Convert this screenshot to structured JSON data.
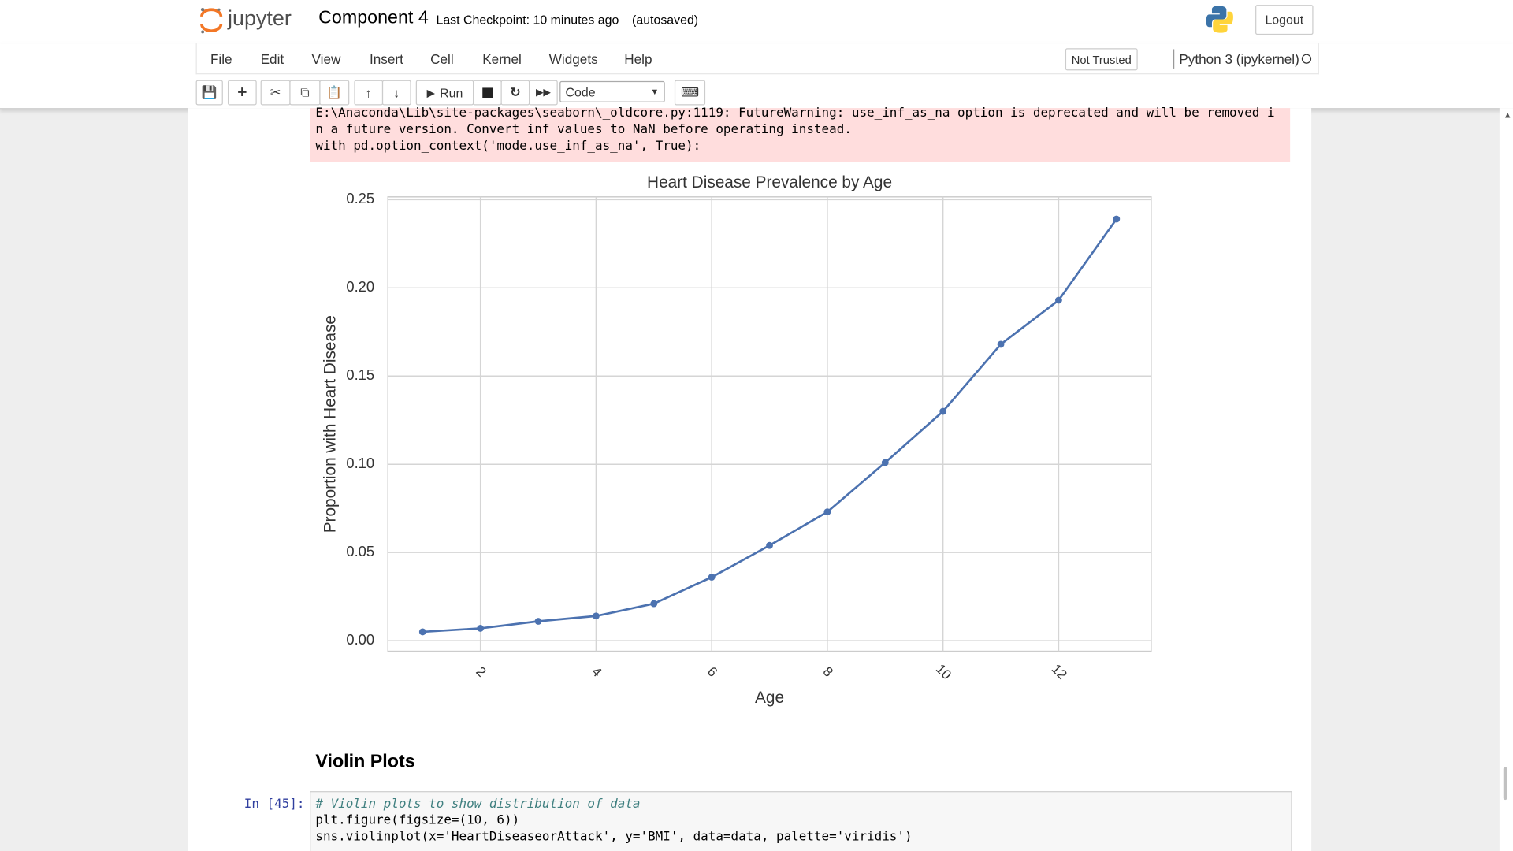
{
  "header": {
    "logo_text": "jupyter",
    "notebook_name": "Component 4",
    "checkpoint": "Last Checkpoint: 10 minutes ago",
    "autosave": "(autosaved)",
    "logout": "Logout"
  },
  "menu": {
    "items": [
      "File",
      "Edit",
      "View",
      "Insert",
      "Cell",
      "Kernel",
      "Widgets",
      "Help"
    ],
    "trust": "Not Trusted",
    "kernel": "Python 3 (ipykernel)"
  },
  "toolbar": {
    "run": "Run",
    "cell_type": "Code"
  },
  "output": {
    "stderr": [
      "E:\\Anaconda\\Lib\\site-packages\\seaborn\\_oldcore.py:1119: FutureWarning: use_inf_as_na option is deprecated and will be removed i",
      "n a future version. Convert inf values to NaN before operating instead.",
      "  with pd.option_context('mode.use_inf_as_na', True):"
    ]
  },
  "chart_data": {
    "type": "line",
    "title": "Heart Disease Prevalence by Age",
    "x_label": "Age",
    "y_label": "Proportion with Heart Disease",
    "x": [
      1,
      2,
      3,
      4,
      5,
      6,
      7,
      8,
      9,
      10,
      11,
      12,
      13
    ],
    "values": [
      0.005,
      0.007,
      0.011,
      0.014,
      0.021,
      0.036,
      0.054,
      0.073,
      0.101,
      0.13,
      0.168,
      0.193,
      0.239
    ],
    "color": "#4c72b0",
    "xlim": [
      0.4,
      13.6
    ],
    "ylim": [
      -0.006,
      0.2516
    ],
    "xticks": [
      2,
      4,
      6,
      8,
      10,
      12
    ],
    "yticks": [
      {
        "value": 0,
        "label": "0.00"
      },
      {
        "value": 0.05,
        "label": "0.05"
      },
      {
        "value": 0.1,
        "label": "0.10"
      },
      {
        "value": 0.15,
        "label": "0.15"
      },
      {
        "value": 0.2,
        "label": "0.20"
      },
      {
        "value": 0.25,
        "label": "0.25"
      }
    ],
    "grid": true
  },
  "section": {
    "heading": "Violin Plots"
  },
  "code_cell": {
    "prompt": "In [45]:",
    "lines": [
      "# Violin plots to show distribution of data",
      "plt.figure(figsize=(10, 6))",
      "sns.violinplot(x='HeartDiseaseorAttack', y='BMI', data=data, palette='viridis')"
    ]
  }
}
